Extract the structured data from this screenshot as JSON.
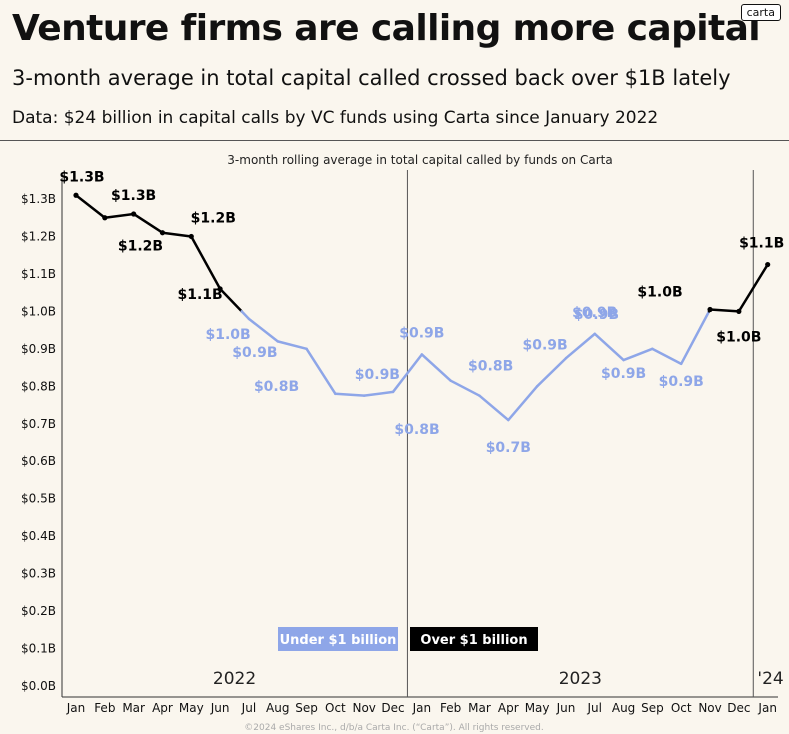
{
  "header": {
    "title": "Venture firms are calling more capital",
    "subtitle": "3-month average in total capital called crossed back over $1B lately",
    "source": "Data:  $24 billion in capital calls by VC funds using Carta since January 2022",
    "logo": "carta"
  },
  "footer": "©2024 eShares Inc., d/b/a Carta Inc. (“Carta”). All rights reserved.",
  "colors": {
    "over": "#000000",
    "under": "#8ea6e8",
    "background": "#faf6ee"
  },
  "chart_data": {
    "type": "line",
    "title": "3-month rolling average in total capital called by funds on Carta",
    "xlabel": "",
    "ylabel": "",
    "ylim": [
      0,
      1.3
    ],
    "y_ticks": [
      "$0.0B",
      "$0.1B",
      "$0.2B",
      "$0.3B",
      "$0.4B",
      "$0.5B",
      "$0.6B",
      "$0.7B",
      "$0.8B",
      "$0.9B",
      "$1.0B",
      "$1.1B",
      "$1.2B",
      "$1.3B"
    ],
    "categories": [
      "Jan",
      "Feb",
      "Mar",
      "Apr",
      "May",
      "Jun",
      "Jul",
      "Aug",
      "Sep",
      "Oct",
      "Nov",
      "Dec",
      "Jan",
      "Feb",
      "Mar",
      "Apr",
      "May",
      "Jun",
      "Jul",
      "Aug",
      "Sep",
      "Oct",
      "Nov",
      "Dec",
      "Jan"
    ],
    "year_labels": [
      "2022",
      "2023",
      "'24"
    ],
    "threshold": 1.0,
    "series": [
      {
        "values": [
          1.31,
          1.25,
          1.26,
          1.21,
          1.2,
          1.06,
          0.98,
          0.92,
          0.9,
          0.78,
          0.775,
          0.785,
          0.885,
          0.815,
          0.775,
          0.71,
          0.8,
          0.875,
          0.94,
          0.87,
          0.9,
          0.86,
          1.005,
          1.0,
          1.125
        ],
        "data_labels": [
          "$1.3B",
          "$1.3B",
          "$1.2B",
          "$1.2B",
          "$1.1B",
          "$1.0B",
          "$0.9B",
          "$0.9B",
          "$0.8B",
          "$0.8B",
          "$0.9B",
          "$0.8B",
          "$0.7B",
          "$0.9B",
          "$0.9B",
          "$0.9B",
          "$0.9B",
          "$0.9B",
          "$1.0B",
          "$1.0B",
          "$1.1B"
        ]
      }
    ],
    "legend": {
      "under": "Under $1 billion",
      "over": "Over $1 billion",
      "placement": "bottom-center"
    }
  }
}
